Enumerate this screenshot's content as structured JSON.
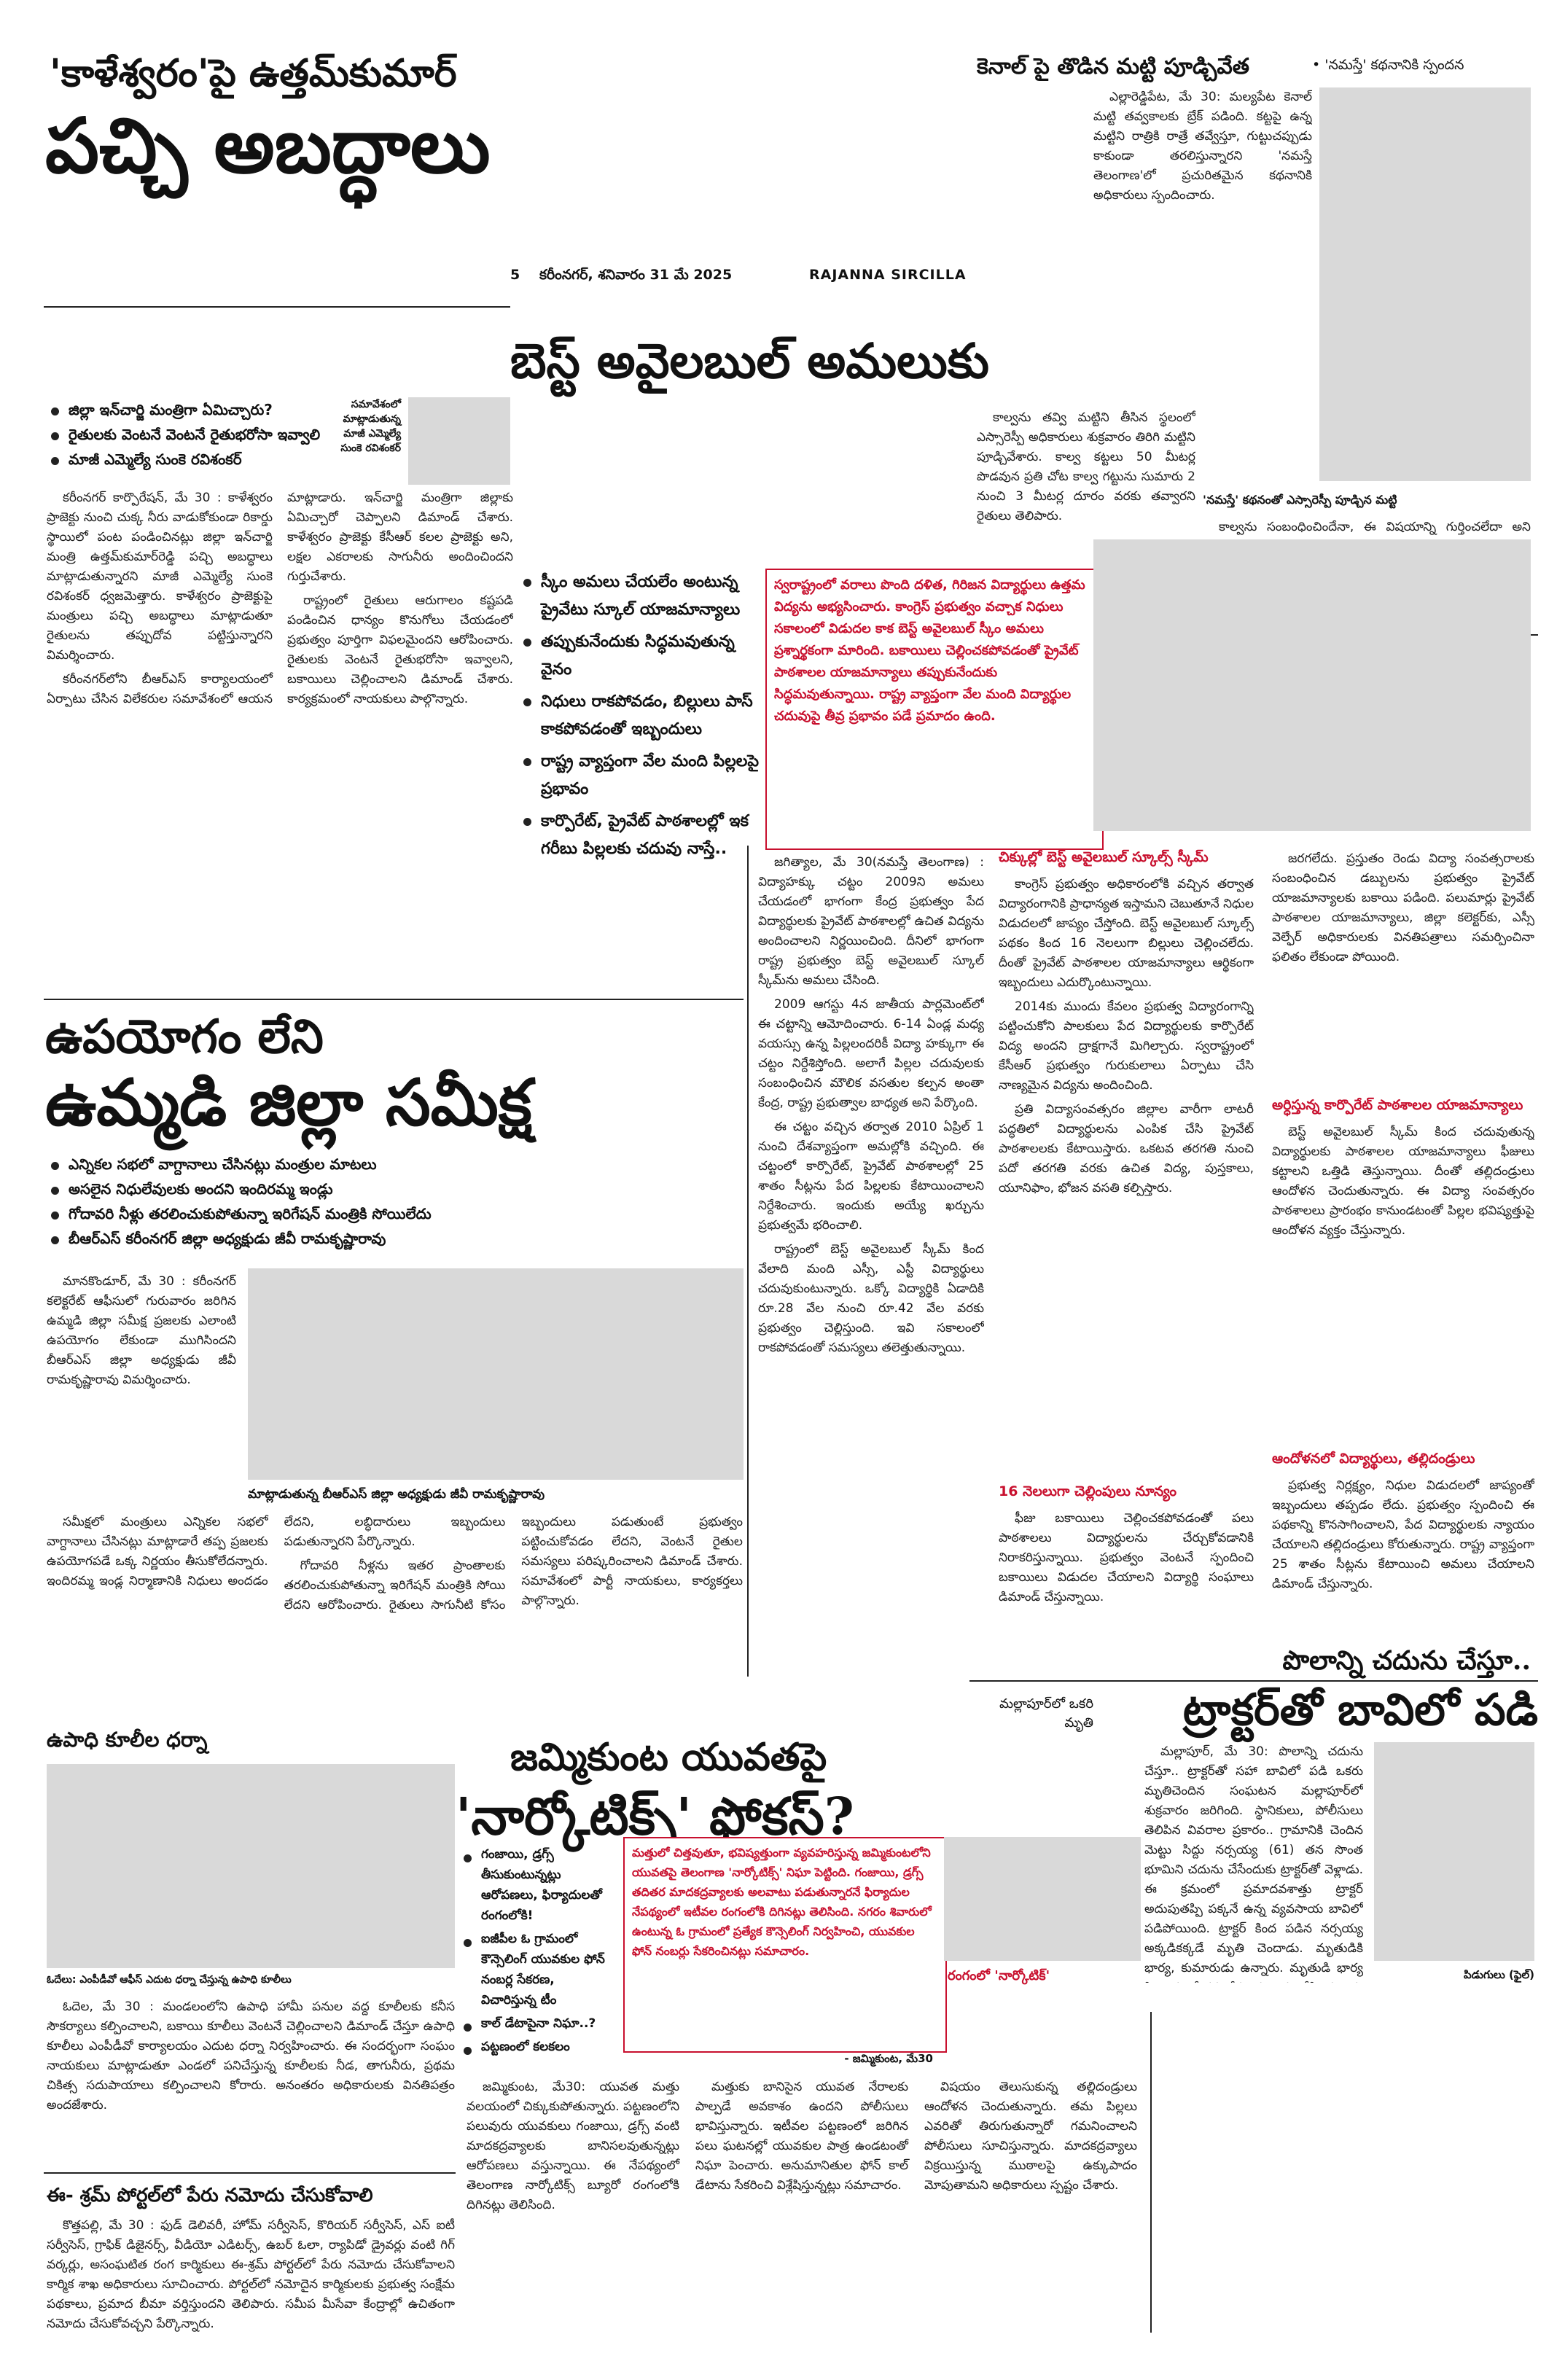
{
  "masthead": {
    "page_number": "5",
    "city_date": "కరీంనగర్, శనివారం 31 మే 2025",
    "edition": "RAJANNA SIRCILLA"
  },
  "lead": {
    "kicker": "'కాళేశ్వరం'పై ఉత్తమ్‌కుమార్",
    "headline": "పచ్చి అబద్ధాలు",
    "bullets": [
      "జిల్లా ఇన్‌చార్జి మంత్రిగా ఏమిచ్చారు?",
      "రైతులకు వెంటనే వెంటనే రైతుభరోసా ఇవ్వాలి",
      "మాజీ ఎమ్మెల్యే సుంకె రవిశంకర్"
    ],
    "byline": "సమావేశంలో మాట్లాడుతున్న మాజీ ఎమ్మెల్యే సుంకె రవిశంకర్",
    "body": [
      "కరీంనగర్ కార్పొరేషన్, మే 30 : కాళేశ్వరం ప్రాజెక్టు నుంచి చుక్క నీరు వాడుకోకుండా రికార్డు స్థాయిలో పంట పండించినట్లు జిల్లా ఇన్‌చార్జి మంత్రి ఉత్తమ్‌కుమార్‌రెడ్డి పచ్చి అబద్ధాలు మాట్లాడుతున్నారని మాజీ ఎమ్మెల్యే సుంకె రవిశంకర్ ధ్వజమెత్తారు. కాళేశ్వరం ప్రాజెక్టుపై మంత్రులు పచ్చి అబద్ధాలు మాట్లాడుతూ రైతులను తప్పుదోవ పట్టిస్తున్నారని విమర్శించారు.",
      "కరీంనగర్‌లోని బీఆర్‌ఎస్ కార్యాలయంలో ఏర్పాటు చేసిన విలేకరుల సమావేశంలో ఆయన మాట్లాడారు. ఇన్‌చార్జి మంత్రిగా జిల్లాకు ఏమిచ్చారో చెప్పాలని డిమాండ్ చేశారు. కాళేశ్వరం ప్రాజెక్టు కేసీఆర్ కలల ప్రాజెక్టు అని, లక్షల ఎకరాలకు సాగునీరు అందించిందని గుర్తుచేశారు.",
      "రాష్ట్రంలో రైతులు ఆరుగాలం కష్టపడి పండించిన ధాన్యం కొనుగోలు చేయడంలో ప్రభుత్వం పూర్తిగా విఫలమైందని ఆరోపించారు. రైతులకు వెంటనే రైతుభరోసా ఇవ్వాలని, బకాయిలు చెల్లించాలని డిమాండ్ చేశారు. కార్యక్రమంలో నాయకులు పాల్గొన్నారు."
    ]
  },
  "canal": {
    "headline": "కెనాల్ పై తొడిన మట్టి పూడ్చివేత",
    "side": "• 'నమస్తే' కథనానికి స్పందన",
    "caption": "'నమస్తే' కథనంతో ఎస్సారెస్పీ పూడ్చిన మట్టి",
    "body": [
      "ఎల్లారెడ్డిపేట, మే 30: మల్యపేట కెనాల్ మట్టి తవ్వకాలకు బ్రేక్ పడింది. కట్టపై ఉన్న మట్టిని రాత్రికి రాత్రే తవ్వేస్తూ, గుట్టుచప్పుడు కాకుండా తరలిస్తున్నారని 'నమస్తే తెలంగాణ'లో ప్రచురితమైన కథనానికి అధికారులు స్పందించారు.",
      "కాల్వను తవ్వి మట్టిని తీసిన స్థలంలో ఎస్సారెస్పీ అధికారులు శుక్రవారం తిరిగి మట్టిని పూడ్చివేశారు. కాల్వ కట్టలు 50 మీటర్ల పొడవున ప్రతి చోట కాల్వ గట్టును సుమారు 2 నుంచి 3 మీటర్ల దూరం వరకు తవ్వారని రైతులు తెలిపారు.",
      "కాల్వను సంబంధించిందేనా, ఈ విషయాన్ని గుర్తించలేదా అని రైతులు ప్రశ్నించారు. కాల్వ గట్టు మళ్లీ కోతకు గురికాకుండా తగిన చర్యలు తీసుకోవాలని, వెంటనే మరమ్మతులు చేయించాలని రైతులు కోరారు."
    ]
  },
  "review": {
    "headline1": "ఉపయోగం లేని",
    "headline2": "ఉమ్మడి జిల్లా సమీక్ష",
    "bullets": [
      "ఎన్నికల సభలో వాగ్దానాలు చేసినట్లు మంత్రుల మాటలు",
      "అసలైన నిధులేవులకు అందని ఇందిరమ్మ ఇండ్లు",
      "గోదావరి నీళ్లు తరలించుకుపోతున్నా ఇరిగేషన్ మంత్రికి సోయిలేదు",
      "బీఆర్‌ఎస్ కరీంనగర్ జిల్లా అధ్యక్షుడు జీవీ రామకృష్ణారావు"
    ],
    "photo_caption": "మాట్లాడుతున్న బీఆర్‌ఎస్ జిల్లా అధ్యక్షుడు జీవీ రామకృష్ణారావు",
    "body": [
      "మానకొండూర్, మే 30 : కరీంనగర్ కలెక్టరేట్ ఆఫీసులో గురువారం జరిగిన ఉమ్మడి జిల్లా సమీక్ష ప్రజలకు ఎలాంటి ఉపయోగం లేకుండా ముగిసిందని బీఆర్‌ఎస్ జిల్లా అధ్యక్షుడు జీవీ రామకృష్ణారావు విమర్శించారు.",
      "సమీక్షలో మంత్రులు ఎన్నికల సభలో వాగ్దానాలు చేసినట్లు మాట్లాడారే తప్ప ప్రజలకు ఉపయోగపడే ఒక్క నిర్ణయం తీసుకోలేదన్నారు. ఇందిరమ్మ ఇండ్ల నిర్మాణానికి నిధులు అందడం లేదని, లబ్ధిదారులు ఇబ్బందులు పడుతున్నారని పేర్కొన్నారు.",
      "గోదావరి నీళ్లను ఇతర ప్రాంతాలకు తరలించుకుపోతున్నా ఇరిగేషన్ మంత్రికి సోయి లేదని ఆరోపించారు. రైతులు సాగునీటి కోసం ఇబ్బందులు పడుతుంటే ప్రభుత్వం పట్టించుకోవడం లేదని, వెంటనే రైతుల సమస్యలు పరిష్కరించాలని డిమాండ్ చేశారు. సమావేశంలో పార్టీ నాయకులు, కార్యకర్తలు పాల్గొన్నారు."
    ]
  },
  "best_available": {
    "headline": "బెస్ట్ అవైలబుల్ అమలుకు",
    "bullets": [
      "స్కీం అమలు చేయలేం అంటున్న ప్రైవేటు స్కూల్ యాజమాన్యాలు",
      "తప్పుకునేందుకు సిద్ధమవుతున్న వైనం",
      "నిధులు రాకపోవడం, బిల్లులు పాస్ కాకపోవడంతో ఇబ్బందులు",
      "రాష్ట్ర వ్యాప్తంగా వేల మంది పిల్లలపై ప్రభావం",
      "కార్పొరేట్, ప్రైవేట్ పాఠశాలల్లో ఇక గరీబు పిల్లలకు చదువు నాస్తే.."
    ],
    "red_box": "స్వరాష్ట్రంలో వరాలు పొంది దళిత, గిరిజన విద్యార్థులు ఉత్తమ విద్యను అభ్యసించారు. కాంగ్రెస్ ప్రభుత్వం వచ్చాక నిధులు సకాలంలో విడుదల కాక బెస్ట్ అవైలబుల్ స్కీం అమలు ప్రశ్నార్థకంగా మారింది. బకాయిలు చెల్లించకపోవడంతో ప్రైవేట్ పాఠశాలల యాజమాన్యాలు తప్పుకునేందుకు సిద్ధమవుతున్నాయి. రాష్ట్ర వ్యాప్తంగా వేల మంది విద్యార్థుల చదువుపై తీవ్ర ప్రభావం పడే ప్రమాదం ఉంది.",
    "subhead_a": "చిక్కుల్లో బెస్ట్ అవైలబుల్ స్కూల్స్ స్కీమ్",
    "subhead_b": "16 నెలలుగా చెల్లింపులు నూన్యం",
    "subhead_c": "అర్ధిస్తున్న కార్పొరేట్ పాఠశాలల యాజమాన్యాలు",
    "subhead_d": "ఆందోళనలో విద్యార్థులు, తల్లిదండ్రులు",
    "body_col1": [
      "జగిత్యాల, మే 30(నమస్తే తెలంగాణ) : విద్యాహక్కు చట్టం 2009ని అమలు చేయడంలో భాగంగా కేంద్ర ప్రభుత్వం పేద విద్యార్థులకు ప్రైవేట్ పాఠశాలల్లో ఉచిత విద్యను అందించాలని నిర్ణయించింది. దీనిలో భాగంగా రాష్ట్ర ప్రభుత్వం బెస్ట్ అవైలబుల్ స్కూల్ స్కీమ్‌ను అమలు చేసింది.",
      "2009 ఆగస్టు 4న జాతీయ పార్లమెంట్‌లో ఈ చట్టాన్ని ఆమోదించారు. 6-14 ఏండ్ల మధ్య వయస్సు ఉన్న పిల్లలందరికీ విద్యా హక్కుగా ఈ చట్టం నిర్దేశిస్తోంది. అలాగే పిల్లల చదువులకు సంబంధించిన మౌలిక వసతుల కల్పన అంతా కేంద్ర, రాష్ట్ర ప్రభుత్వాల బాధ్యత అని పేర్కొంది.",
      "ఈ చట్టం వచ్చిన తర్వాత 2010 ఏప్రిల్ 1 నుంచి దేశవ్యాప్తంగా అమల్లోకి వచ్చింది. ఈ చట్టంలో కార్పొరేట్, ప్రైవేట్ పాఠశాలల్లో 25 శాతం సీట్లను పేద పిల్లలకు కేటాయించాలని నిర్దేశించారు. ఇందుకు అయ్యే ఖర్చును ప్రభుత్వమే భరించాలి.",
      "రాష్ట్రంలో బెస్ట్ అవైలబుల్ స్కీమ్ కింద వేలాది మంది ఎస్సీ, ఎస్టీ విద్యార్థులు చదువుకుంటున్నారు. ఒక్కో విద్యార్థికి ఏడాదికి రూ.28 వేల నుంచి రూ.42 వేల వరకు ప్రభుత్వం చెల్లిస్తుంది. ఇవి సకాలంలో రాకపోవడంతో సమస్యలు తలెత్తుతున్నాయి."
    ],
    "body_col2": [
      "కాంగ్రెస్ ప్రభుత్వం అధికారంలోకి వచ్చిన తర్వాత విద్యారంగానికి ప్రాధాన్యత ఇస్తామని చెబుతూనే నిధుల విడుదలలో జాప్యం చేస్తోంది. బెస్ట్ అవైలబుల్ స్కూల్స్ పథకం కింద 16 నెలలుగా బిల్లులు చెల్లించలేదు. దీంతో ప్రైవేట్ పాఠశాలల యాజమాన్యాలు ఆర్థికంగా ఇబ్బందులు ఎదుర్కొంటున్నాయి.",
      "2014కు ముందు కేవలం ప్రభుత్వ విద్యారంగాన్ని పట్టించుకోని పాలకులు పేద విద్యార్థులకు కార్పొరేట్ విద్య అందని ద్రాక్షగానే మిగిల్చారు. స్వరాష్ట్రంలో కేసీఆర్ ప్రభుత్వం గురుకులాలు ఏర్పాటు చేసి నాణ్యమైన విద్యను అందించింది.",
      "ప్రతి విద్యాసంవత్సరం జిల్లాల వారీగా లాటరీ పద్ధతిలో విద్యార్థులను ఎంపిక చేసి ప్రైవేట్ పాఠశాలలకు కేటాయిస్తారు. ఒకటవ తరగతి నుంచి పదో తరగతి వరకు ఉచిత విద్య, పుస్తకాలు, యూనిఫాం, భోజన వసతి కల్పిస్తారు.",
      "ఫీజు బకాయిలు చెల్లించకపోవడంతో పలు పాఠశాలలు విద్యార్థులను చేర్చుకోవడానికి నిరాకరిస్తున్నాయి. ప్రభుత్వం వెంటనే స్పందించి బకాయిలు విడుదల చేయాలని విద్యార్థి సంఘాలు డిమాండ్ చేస్తున్నాయి."
    ],
    "body_col3": [
      "జరగలేదు. ప్రస్తుతం రెండు విద్యా సంవత్సరాలకు సంబంధించిన డబ్బులను ప్రభుత్వం ప్రైవేట్ యాజమాన్యాలకు బకాయి పడింది. పలుమార్లు ప్రైవేట్ పాఠశాలల యాజమాన్యాలు, జిల్లా కలెక్టర్‌కు, ఎస్సీ వెల్ఫేర్ అధికారులకు వినతిపత్రాలు సమర్పించినా ఫలితం లేకుండా పోయింది.",
      "బెస్ట్ అవైలబుల్ స్కీమ్ కింద చదువుతున్న విద్యార్థులకు పాఠశాలల యాజమాన్యాలు ఫీజులు కట్టాలని ఒత్తిడి తెస్తున్నాయి. దీంతో తల్లిదండ్రులు ఆందోళన చెందుతున్నారు. ఈ విద్యా సంవత్సరం పాఠశాలలు ప్రారంభం కానుండటంతో పిల్లల భవిష్యత్తుపై ఆందోళన వ్యక్తం చేస్తున్నారు.",
      "ప్రభుత్వ నిర్లక్ష్యం, నిధుల విడుదలలో జాప్యంతో ఇబ్బందులు తప్పడం లేదు. ప్రభుత్వం స్పందించి ఈ పథకాన్ని కొనసాగించాలని, పేద విద్యార్థులకు న్యాయం చేయాలని తల్లిదండ్రులు కోరుతున్నారు. రాష్ట్ర వ్యాప్తంగా 25 శాతం సీట్లను కేటాయించి అమలు చేయాలని డిమాండ్ చేస్తున్నారు."
    ]
  },
  "tractor": {
    "kicker": "పొలాన్ని చదును చేస్తూ..",
    "headline": "ట్రాక్టర్‌తో బావిలో పడి",
    "side": "మల్లాపూర్‌లో ఒకరి మృతి",
    "photo_caption": "పిడుగులు (ఫైల్)",
    "body": "మల్లాపూర్, మే 30: పొలాన్ని చదును చేస్తూ.. ట్రాక్టర్‌తో సహా బావిలో పడి ఒకరు మృతిచెందిన సంఘటన మల్లాపూర్‌లో శుక్రవారం జరిగింది. స్థానికులు, పోలీసులు తెలిపిన వివరాల ప్రకారం.. గ్రామానికి చెందిన మెట్టు సిద్దు నర్సయ్య (61) తన సొంత భూమిని చదును చేసేందుకు ట్రాక్టర్‌తో వెళ్లాడు. ఈ క్రమంలో ప్రమాదవశాత్తు ట్రాక్టర్ అదుపుతప్పి పక్కనే ఉన్న వ్యవసాయ బావిలో పడిపోయింది. ట్రాక్టర్ కింద పడిన నర్సయ్య అక్కడికక్కడే మృతి చెందాడు. మృతుడికి భార్య, కుమారుడు ఉన్నారు. మృతుడి భార్య ఫిర్యాదు మేరకు కేసు నమోదు చేసి దర్యాప్తు చేస్తున్నట్లు ఎస్సై తెలిపారు."
  },
  "narcotics": {
    "kicker": "జమ్మికుంట యువతపై",
    "headline": "'నార్కోటిక్స్' ఫోకస్?",
    "bullets": [
      "గంజాయి, డ్రగ్స్ తీసుకుంటున్నట్లు ఆరోపణలు, ఫిర్యాదులతో రంగంలోకి!",
      "ఐజీపీల ఓ గ్రామంలో కౌన్సెలింగ్ యువకుల ఫోన్ నంబర్ల సేకరణ, విచారిస్తున్న టీం",
      "కాల్ డేటాపైనా నిఘా..?",
      "పట్టణంలో కలకలం"
    ],
    "red_box": "మత్తులో చిత్తవుతూ, భవిష్యత్తుంగా వ్యవహరిస్తున్న జమ్మికుంటలోని యువతపై తెలంగాణ 'నార్కోటిక్స్' నిఘా పెట్టింది. గంజాయి, డ్రగ్స్ తదితర మాదకద్రవ్యాలకు అలవాటు పడుతున్నారనే ఫిర్యాదుల నేపథ్యంలో ఇటీవల రంగంలోకి దిగినట్లు తెలిసింది. నగరం శివారులో ఉంటున్న ఓ గ్రామంలో ప్రత్యేక కౌన్సెలింగ్ నిర్వహించి, యువకుల ఫోన్ నంబర్లు సేకరించినట్లు సమాచారం.",
    "red_label": "రంగంలో 'నార్కోటిక్'",
    "dateline": "- జమ్మికుంట, మే30",
    "body": [
      "జమ్మికుంట, మే30: యువత మత్తు వలయంలో చిక్కుకుపోతున్నారు. పట్టణంలోని పలువురు యువకులు గంజాయి, డ్రగ్స్ వంటి మాదకద్రవ్యాలకు బానిసలవుతున్నట్లు ఆరోపణలు వస్తున్నాయి. ఈ నేపథ్యంలో తెలంగాణ నార్కోటిక్స్ బ్యూరో రంగంలోకి దిగినట్లు తెలిసింది.",
      "మత్తుకు బానిసైన యువత నేరాలకు పాల్పడే అవకాశం ఉందని పోలీసులు భావిస్తున్నారు. ఇటీవల పట్టణంలో జరిగిన పలు ఘటనల్లో యువకుల పాత్ర ఉండటంతో నిఘా పెంచారు. అనుమానితుల ఫోన్ కాల్ డేటాను సేకరించి విశ్లేషిస్తున్నట్లు సమాచారం.",
      "విషయం తెలుసుకున్న తల్లిదండ్రులు ఆందోళన చెందుతున్నారు. తమ పిల్లలు ఎవరితో తిరుగుతున్నారో గమనించాలని పోలీసులు సూచిస్తున్నారు. మాదకద్రవ్యాలు విక్రయిస్తున్న ముఠాలపై ఉక్కుపాదం మోపుతామని అధికారులు స్పష్టం చేశారు."
    ]
  },
  "upadhi": {
    "headline": "ఉపాధి కూలీల ధర్నా",
    "caption": "ఓదేలు: ఎంపీడీవో ఆఫీస్ ఎదుట ధర్నా చేస్తున్న ఉపాధి కూలీలు",
    "body": "ఓదెల, మే 30 : మండలంలోని ఉపాధి హామీ పనుల వద్ద కూలీలకు కనీస సౌకర్యాలు కల్పించాలని, బకాయి కూలీలు వెంటనే చెల్లించాలని డిమాండ్ చేస్తూ ఉపాధి కూలీలు ఎంపీడీవో కార్యాలయం ఎదుట ధర్నా నిర్వహించారు. ఈ సందర్భంగా సంఘం నాయకులు మాట్లాడుతూ ఎండలో పనిచేస్తున్న కూలీలకు నీడ, తాగునీరు, ప్రథమ చికిత్స సదుపాయాలు కల్పించాలని కోరారు. అనంతరం అధికారులకు వినతిపత్రం అందజేశారు."
  },
  "eshram": {
    "headline": "ఈ- శ్రమ్ పోర్టల్‌లో పేరు నమోదు చేసుకోవాలి",
    "body": "కొత్తపల్లి, మే 30 : ఫుడ్ డెలివరీ, హోమ్ సర్వీసెస్, కొరియర్ సర్వీసెస్, ఎస్ ఐటీ సర్వీసెస్, గ్రాఫిక్ డిజైనర్స్, వీడియో ఎడిటర్స్, ఉబర్ ఓలా, ర్యాపిడో డ్రైవర్లు వంటి గిగ్ వర్కర్లు, అసంఘటిత రంగ కార్మికులు ఈ-శ్రమ్ పోర్టల్‌లో పేరు నమోదు చేసుకోవాలని కార్మిక శాఖ అధికారులు సూచించారు. పోర్టల్‌లో నమోదైన కార్మికులకు ప్రభుత్వ సంక్షేమ పథకాలు, ప్రమాద బీమా వర్తిస్తుందని తెలిపారు. సమీప మీసేవా కేంద్రాల్లో ఉచితంగా నమోదు చేసుకోవచ్చని పేర్కొన్నారు."
  }
}
